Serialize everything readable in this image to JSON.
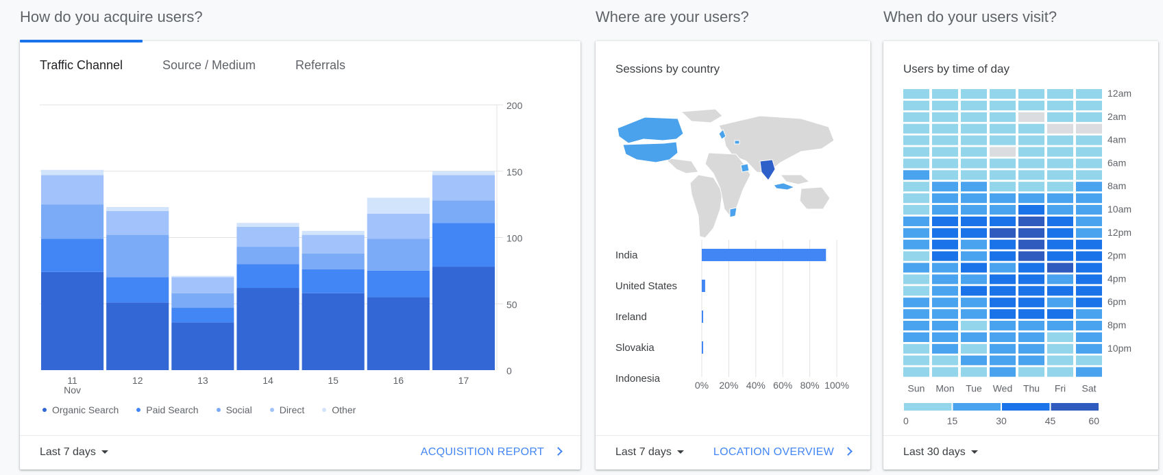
{
  "sections": {
    "acquire_title": "How do you acquire users?",
    "where_title": "Where are your users?",
    "when_title": "When do your users visit?"
  },
  "acquisition": {
    "tabs": [
      {
        "label": "Traffic Channel"
      },
      {
        "label": "Source / Medium"
      },
      {
        "label": "Referrals"
      }
    ],
    "date_range": "Last 7 days",
    "report_link": "ACQUISITION REPORT"
  },
  "location": {
    "heading": "Sessions by country",
    "date_range": "Last 7 days",
    "report_link": "LOCATION OVERVIEW"
  },
  "time_of_day": {
    "heading": "Users by time of day",
    "date_range": "Last 30 days"
  },
  "colors": {
    "organic": "#3367d6",
    "paid": "#4285f4",
    "social": "#7baaf7",
    "direct": "#a1c2fa",
    "other": "#d2e3fc"
  },
  "chart_data": [
    {
      "type": "bar",
      "stacked": true,
      "categories": [
        "11",
        "12",
        "13",
        "14",
        "15",
        "16",
        "17"
      ],
      "category_sublabels": [
        "Nov",
        "",
        "",
        "",
        "",
        "",
        ""
      ],
      "series": [
        {
          "name": "Organic Search",
          "values": [
            74,
            51,
            36,
            62,
            58,
            55,
            78
          ]
        },
        {
          "name": "Paid Search",
          "values": [
            25,
            19,
            11,
            18,
            18,
            20,
            33
          ]
        },
        {
          "name": "Social",
          "values": [
            26,
            32,
            11,
            13,
            12,
            24,
            17
          ]
        },
        {
          "name": "Direct",
          "values": [
            22,
            18,
            12,
            15,
            14,
            19,
            19
          ]
        },
        {
          "name": "Other",
          "values": [
            4,
            3,
            1,
            3,
            3,
            12,
            3
          ]
        }
      ],
      "ylim": [
        0,
        200
      ],
      "yticks": [
        0,
        50,
        100,
        150,
        200
      ],
      "grid": true,
      "legend_position": "bottom"
    },
    {
      "type": "bar",
      "orientation": "horizontal",
      "categories": [
        "India",
        "United States",
        "Ireland",
        "Slovakia",
        "Indonesia"
      ],
      "values": [
        92,
        2.5,
        1,
        0.5,
        0
      ],
      "xlim": [
        0,
        100
      ],
      "xticks": [
        "0%",
        "20%",
        "40%",
        "60%",
        "80%",
        "100%"
      ],
      "grid": true
    },
    {
      "type": "heatmap",
      "columns": [
        "Sun",
        "Mon",
        "Tue",
        "Wed",
        "Thu",
        "Fri",
        "Sat"
      ],
      "row_labels": [
        "12am",
        "2am",
        "4am",
        "6am",
        "8am",
        "10am",
        "12pm",
        "2pm",
        "4pm",
        "6pm",
        "8pm",
        "10pm"
      ],
      "scale_ticks": [
        "0",
        "15",
        "30",
        "45",
        "60"
      ],
      "scale_range": [
        0,
        60
      ],
      "values": [
        [
          8,
          8,
          8,
          8,
          8,
          8,
          8
        ],
        [
          8,
          8,
          8,
          8,
          8,
          8,
          8
        ],
        [
          8,
          8,
          8,
          8,
          0,
          8,
          8
        ],
        [
          8,
          8,
          8,
          8,
          8,
          0,
          0
        ],
        [
          8,
          8,
          8,
          8,
          8,
          8,
          8
        ],
        [
          8,
          8,
          8,
          0,
          8,
          8,
          8
        ],
        [
          8,
          8,
          8,
          8,
          8,
          8,
          8
        ],
        [
          22,
          10,
          8,
          10,
          10,
          8,
          10
        ],
        [
          10,
          22,
          20,
          12,
          10,
          10,
          22
        ],
        [
          10,
          22,
          22,
          22,
          22,
          22,
          22
        ],
        [
          10,
          22,
          22,
          22,
          38,
          22,
          22
        ],
        [
          22,
          38,
          38,
          38,
          52,
          38,
          22
        ],
        [
          22,
          38,
          38,
          52,
          52,
          38,
          22
        ],
        [
          22,
          38,
          22,
          38,
          52,
          38,
          38
        ],
        [
          10,
          38,
          22,
          38,
          52,
          38,
          38
        ],
        [
          22,
          22,
          38,
          22,
          38,
          52,
          38
        ],
        [
          10,
          22,
          22,
          38,
          38,
          22,
          38
        ],
        [
          10,
          22,
          38,
          38,
          38,
          38,
          38
        ],
        [
          22,
          22,
          22,
          38,
          38,
          22,
          38
        ],
        [
          22,
          22,
          22,
          38,
          38,
          38,
          22
        ],
        [
          22,
          22,
          10,
          22,
          22,
          22,
          22
        ],
        [
          22,
          22,
          22,
          22,
          22,
          10,
          22
        ],
        [
          10,
          22,
          10,
          22,
          22,
          10,
          22
        ],
        [
          10,
          10,
          22,
          22,
          22,
          10,
          10
        ],
        [
          10,
          10,
          10,
          22,
          10,
          10,
          22
        ]
      ]
    }
  ]
}
